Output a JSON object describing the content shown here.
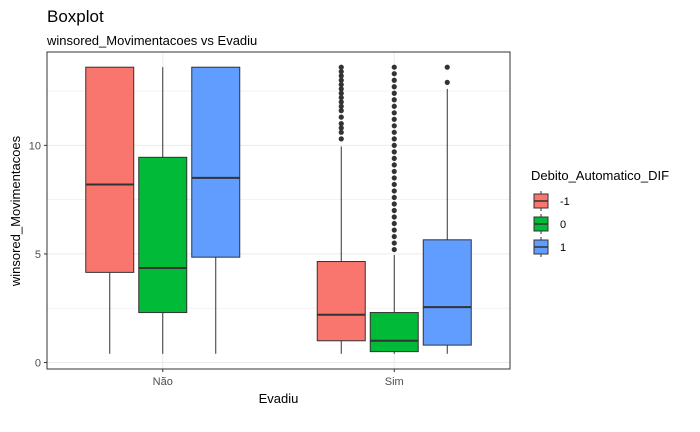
{
  "header": {
    "title": "Boxplot",
    "subtitle": "winsored_Movimentacoes vs Evadiu"
  },
  "chart_data": {
    "type": "boxplot",
    "xlabel": "Evadiu",
    "ylabel": "winsored_Movimentacoes",
    "categories": [
      "Não",
      "Sim"
    ],
    "ylim": [
      -0.3,
      14.3
    ],
    "yticks": [
      0,
      5,
      10
    ],
    "grid": true,
    "legend": {
      "title": "Debito_Automatico_DIF",
      "position": "right",
      "entries": [
        "-1",
        "0",
        "1"
      ]
    },
    "series": [
      {
        "name": "-1",
        "color": "#F8766D",
        "boxes": [
          {
            "category": "Não",
            "min": 0.4,
            "q1": 4.15,
            "median": 8.2,
            "q3": 13.6,
            "max": 13.6,
            "outliers": []
          },
          {
            "category": "Sim",
            "min": 0.4,
            "q1": 1.0,
            "median": 2.2,
            "q3": 4.65,
            "max": 9.95,
            "outliers": [
              10.3,
              10.6,
              10.8,
              11.0,
              11.3,
              11.6,
              11.8,
              12.0,
              12.2,
              12.4,
              12.6,
              12.8,
              13.0,
              13.2,
              13.4,
              13.6
            ]
          }
        ]
      },
      {
        "name": "0",
        "color": "#00BA38",
        "boxes": [
          {
            "category": "Não",
            "min": 0.4,
            "q1": 2.3,
            "median": 4.35,
            "q3": 9.45,
            "max": 13.6,
            "outliers": []
          },
          {
            "category": "Sim",
            "min": 0.4,
            "q1": 0.5,
            "median": 1.0,
            "q3": 2.3,
            "max": 4.95,
            "outliers": [
              5.2,
              5.5,
              5.8,
              6.1,
              6.4,
              6.7,
              7.0,
              7.3,
              7.6,
              7.9,
              8.2,
              8.5,
              8.8,
              9.1,
              9.4,
              9.7,
              10.0,
              10.3,
              10.6,
              10.9,
              11.2,
              11.5,
              11.8,
              12.1,
              12.4,
              12.7,
              13.0,
              13.3,
              13.6
            ]
          }
        ]
      },
      {
        "name": "1",
        "color": "#619CFF",
        "boxes": [
          {
            "category": "Não",
            "min": 0.4,
            "q1": 4.85,
            "median": 8.5,
            "q3": 13.6,
            "max": 13.6,
            "outliers": []
          },
          {
            "category": "Sim",
            "min": 0.4,
            "q1": 0.8,
            "median": 2.55,
            "q3": 5.65,
            "max": 12.6,
            "outliers": [
              12.9,
              13.6
            ]
          }
        ]
      }
    ]
  }
}
